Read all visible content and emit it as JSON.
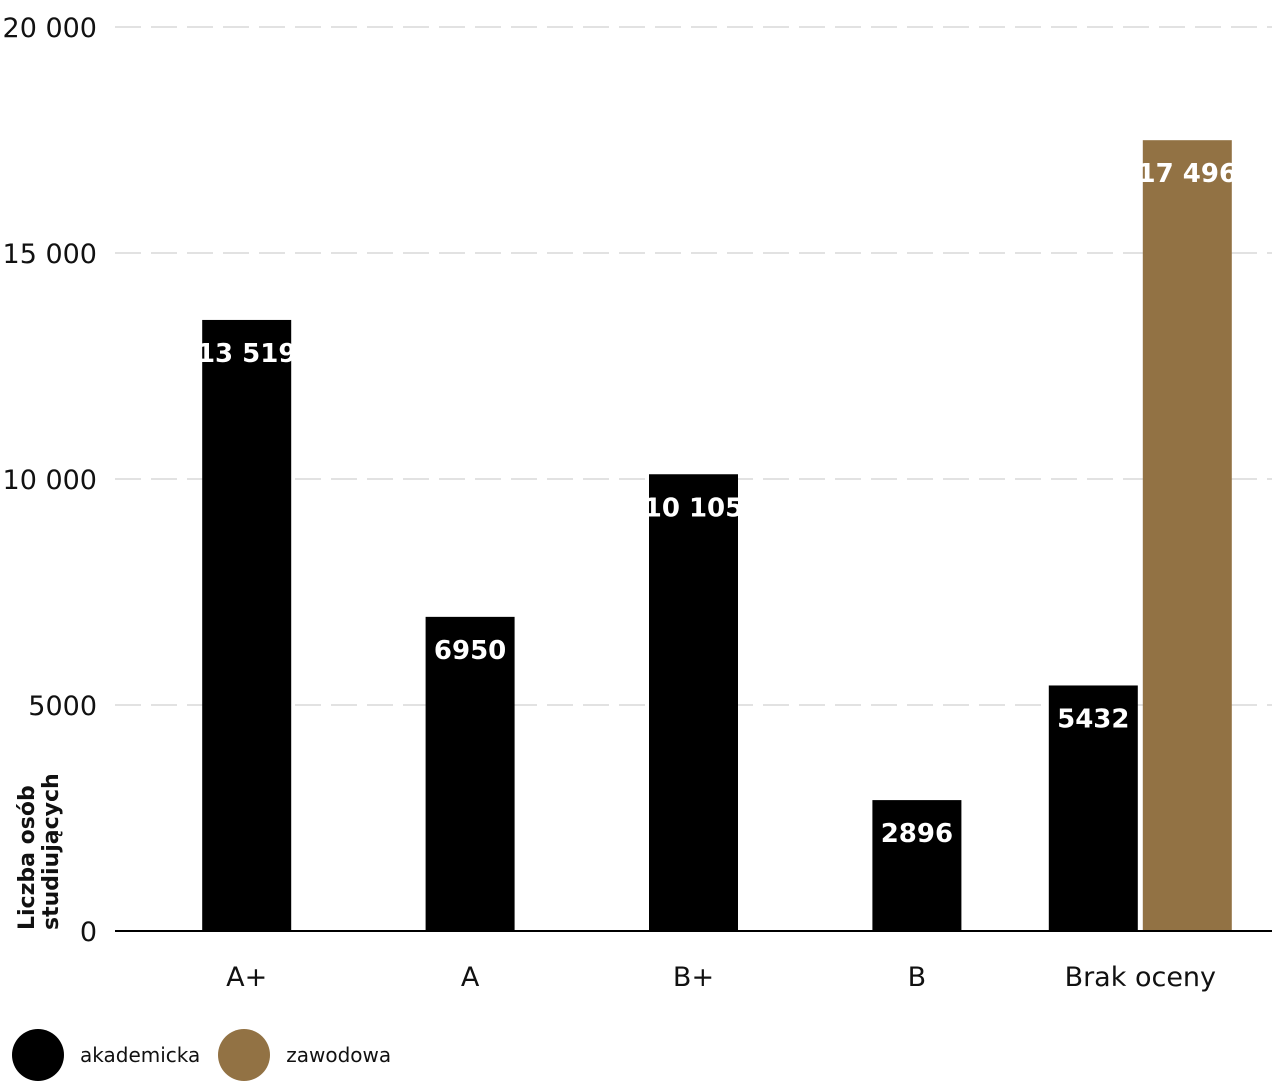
{
  "chart_data": {
    "type": "bar",
    "categories": [
      "A+",
      "A",
      "B+",
      "B",
      "Brak oceny"
    ],
    "series": [
      {
        "name": "akademicka",
        "color": "#000000",
        "values": [
          13519,
          6950,
          10105,
          2896,
          5432
        ]
      },
      {
        "name": "zawodowa",
        "color": "#927244",
        "values": [
          null,
          null,
          null,
          null,
          17496
        ]
      }
    ],
    "value_labels": [
      [
        "13 519",
        "6950",
        "10 105",
        "2896",
        "5432"
      ],
      [
        null,
        null,
        null,
        null,
        "17 496"
      ]
    ],
    "ylabel_lines": [
      "Liczba osób",
      "studiujących"
    ],
    "ylim": [
      0,
      20000
    ],
    "yticks": [
      0,
      5000,
      10000,
      15000,
      20000
    ],
    "ytick_labels": [
      "0",
      "5000",
      "10 000",
      "15 000",
      "20 000"
    ],
    "grid": true,
    "legend_position": "bottom-left"
  }
}
